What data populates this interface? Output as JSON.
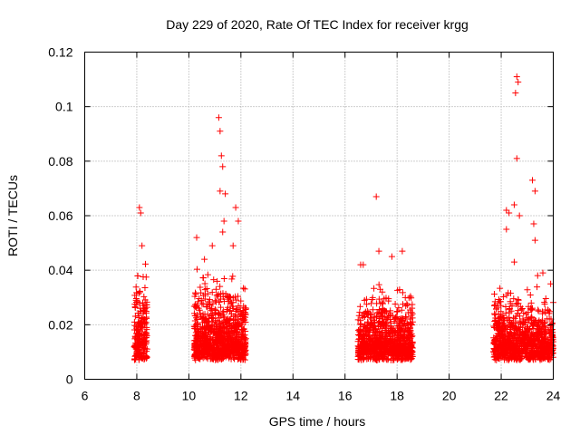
{
  "chart_data": {
    "type": "scatter",
    "title": "Day 229 of 2020, Rate Of TEC Index for receiver krgg",
    "xlabel": "GPS time / hours",
    "ylabel": "ROTI / TECUs",
    "xlim": [
      6,
      24
    ],
    "ylim": [
      0,
      0.12
    ],
    "xticks": [
      6,
      8,
      10,
      12,
      14,
      16,
      18,
      20,
      22,
      24
    ],
    "yticks": [
      0,
      0.02,
      0.04,
      0.06,
      0.08,
      0.1,
      0.12
    ],
    "ytick_labels": [
      "0",
      "0.02",
      "0.04",
      "0.06",
      "0.08",
      "0.1",
      "0.12"
    ],
    "grid": true,
    "marker": "+",
    "color": "#ff0000",
    "clusters": [
      {
        "x_range": [
          7.9,
          8.4
        ],
        "y_range": [
          0.003,
          0.045
        ],
        "density": 220
      },
      {
        "x_range": [
          10.2,
          12.2
        ],
        "y_range": [
          0.003,
          0.04
        ],
        "density": 900
      },
      {
        "x_range": [
          16.5,
          18.6
        ],
        "y_range": [
          0.003,
          0.035
        ],
        "density": 900
      },
      {
        "x_range": [
          21.7,
          24.0
        ],
        "y_range": [
          0.003,
          0.035
        ],
        "density": 900
      }
    ],
    "outliers": [
      {
        "x": 8.1,
        "y": 0.063
      },
      {
        "x": 8.15,
        "y": 0.061
      },
      {
        "x": 8.2,
        "y": 0.049
      },
      {
        "x": 10.3,
        "y": 0.052
      },
      {
        "x": 10.6,
        "y": 0.044
      },
      {
        "x": 10.9,
        "y": 0.049
      },
      {
        "x": 11.15,
        "y": 0.096
      },
      {
        "x": 11.2,
        "y": 0.091
      },
      {
        "x": 11.25,
        "y": 0.082
      },
      {
        "x": 11.3,
        "y": 0.078
      },
      {
        "x": 11.2,
        "y": 0.069
      },
      {
        "x": 11.4,
        "y": 0.068
      },
      {
        "x": 11.35,
        "y": 0.058
      },
      {
        "x": 11.3,
        "y": 0.054
      },
      {
        "x": 11.8,
        "y": 0.063
      },
      {
        "x": 11.9,
        "y": 0.058
      },
      {
        "x": 11.7,
        "y": 0.049
      },
      {
        "x": 16.6,
        "y": 0.042
      },
      {
        "x": 16.7,
        "y": 0.042
      },
      {
        "x": 17.2,
        "y": 0.067
      },
      {
        "x": 17.3,
        "y": 0.047
      },
      {
        "x": 17.8,
        "y": 0.045
      },
      {
        "x": 18.2,
        "y": 0.047
      },
      {
        "x": 22.2,
        "y": 0.062
      },
      {
        "x": 22.3,
        "y": 0.061
      },
      {
        "x": 22.5,
        "y": 0.064
      },
      {
        "x": 22.6,
        "y": 0.111
      },
      {
        "x": 22.65,
        "y": 0.109
      },
      {
        "x": 22.55,
        "y": 0.105
      },
      {
        "x": 22.6,
        "y": 0.081
      },
      {
        "x": 22.2,
        "y": 0.055
      },
      {
        "x": 22.5,
        "y": 0.043
      },
      {
        "x": 22.7,
        "y": 0.06
      },
      {
        "x": 23.2,
        "y": 0.073
      },
      {
        "x": 23.3,
        "y": 0.069
      },
      {
        "x": 23.25,
        "y": 0.057
      },
      {
        "x": 23.3,
        "y": 0.051
      },
      {
        "x": 23.4,
        "y": 0.038
      },
      {
        "x": 23.6,
        "y": 0.039
      },
      {
        "x": 23.9,
        "y": 0.035
      }
    ]
  }
}
